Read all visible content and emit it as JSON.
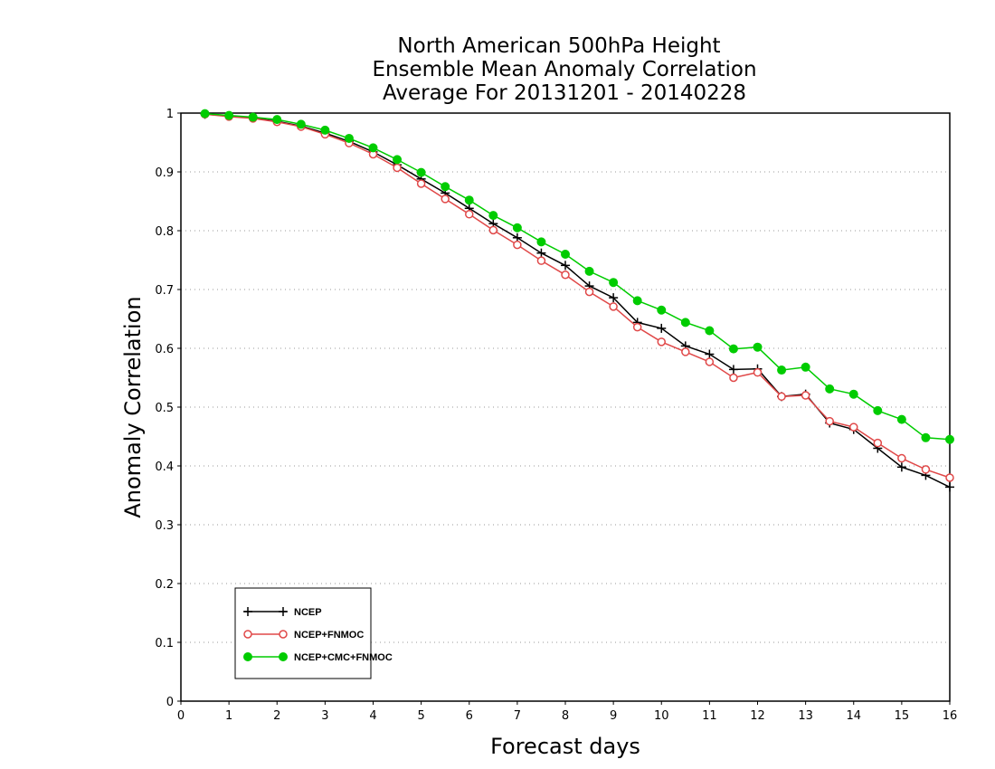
{
  "chart_data": {
    "type": "line",
    "title": [
      "North American 500hPa Height",
      "Ensemble Mean Anomaly Correlation",
      "Average For 20131201 - 20140228"
    ],
    "xlabel": "Forecast days",
    "ylabel": "Anomaly Correlation",
    "xlim": [
      0,
      16
    ],
    "ylim": [
      0,
      1
    ],
    "xticks": [
      "0",
      "1",
      "2",
      "3",
      "4",
      "5",
      "6",
      "7",
      "8",
      "9",
      "10",
      "11",
      "12",
      "13",
      "14",
      "15",
      "16"
    ],
    "yticks": [
      "0",
      "0.1",
      "0.2",
      "0.3",
      "0.4",
      "0.5",
      "0.6",
      "0.7",
      "0.8",
      "0.9",
      "1"
    ],
    "grid": "horizontal dotted",
    "legend_position": "bottom-left",
    "x": [
      0.5,
      1,
      1.5,
      2,
      2.5,
      3,
      3.5,
      4,
      4.5,
      5,
      5.5,
      6,
      6.5,
      7,
      7.5,
      8,
      8.5,
      9,
      9.5,
      10,
      10.5,
      11,
      11.5,
      12,
      12.5,
      13,
      13.5,
      14,
      14.5,
      15,
      15.5,
      16
    ],
    "series": [
      {
        "name": "NCEP",
        "color": "#000000",
        "marker": "plus",
        "values": [
          0.998,
          0.995,
          0.992,
          0.986,
          0.978,
          0.966,
          0.952,
          0.934,
          0.912,
          0.888,
          0.864,
          0.838,
          0.812,
          0.788,
          0.762,
          0.741,
          0.706,
          0.686,
          0.644,
          0.634,
          0.604,
          0.59,
          0.564,
          0.565,
          0.518,
          0.522,
          0.473,
          0.462,
          0.43,
          0.398,
          0.384,
          0.364
        ]
      },
      {
        "name": "NCEP+FNMOC",
        "color": "#e04848",
        "marker": "open-circle",
        "values": [
          0.998,
          0.994,
          0.991,
          0.985,
          0.977,
          0.964,
          0.949,
          0.93,
          0.907,
          0.88,
          0.854,
          0.828,
          0.801,
          0.776,
          0.749,
          0.725,
          0.696,
          0.671,
          0.636,
          0.611,
          0.594,
          0.577,
          0.55,
          0.559,
          0.518,
          0.52,
          0.476,
          0.466,
          0.439,
          0.413,
          0.394,
          0.38
        ]
      },
      {
        "name": "NCEP+CMC+FNMOC",
        "color": "#00cc00",
        "marker": "filled-circle",
        "values": [
          0.999,
          0.996,
          0.993,
          0.989,
          0.981,
          0.971,
          0.957,
          0.941,
          0.921,
          0.899,
          0.875,
          0.852,
          0.826,
          0.805,
          0.781,
          0.76,
          0.731,
          0.712,
          0.681,
          0.665,
          0.644,
          0.63,
          0.599,
          0.602,
          0.563,
          0.568,
          0.531,
          0.522,
          0.494,
          0.479,
          0.448,
          0.445
        ]
      }
    ]
  }
}
